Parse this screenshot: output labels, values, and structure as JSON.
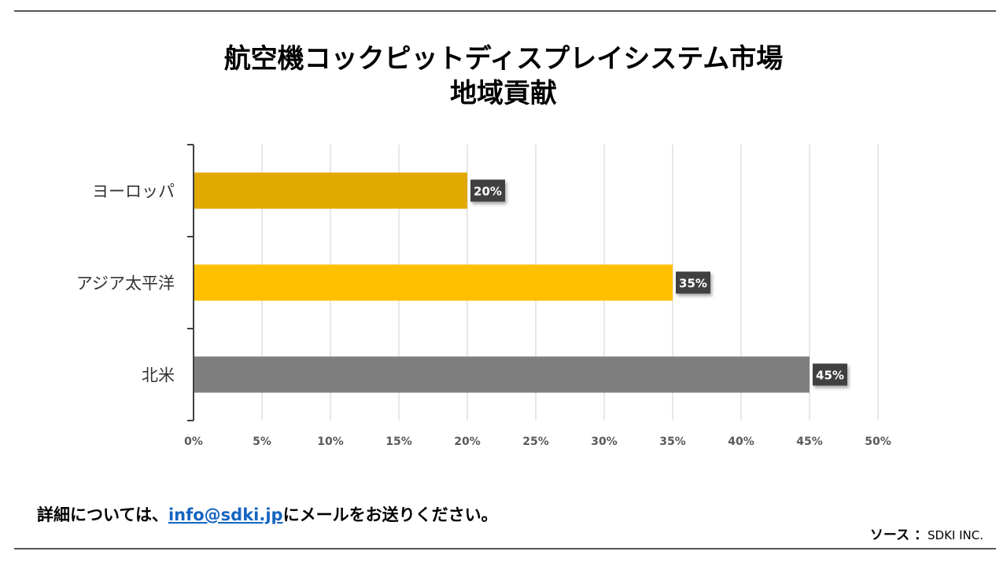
{
  "title_line1": "航空機コックピットディスプレイシステム市場",
  "title_line2": "地域貢献",
  "chart_data": {
    "type": "bar",
    "orientation": "horizontal",
    "categories": [
      "ヨーロッパ",
      "アジア太平洋",
      "北米"
    ],
    "values": [
      20,
      35,
      45
    ],
    "data_labels": [
      "20%",
      "35%",
      "45%"
    ],
    "colors": [
      "#e0a800",
      "#ffc000",
      "#7f7f7f"
    ],
    "xlim": [
      0,
      50
    ],
    "xticks": [
      0,
      5,
      10,
      15,
      20,
      25,
      30,
      35,
      40,
      45,
      50
    ],
    "xtick_labels": [
      "0%",
      "5%",
      "10%",
      "15%",
      "20%",
      "25%",
      "30%",
      "35%",
      "40%",
      "45%",
      "50%"
    ],
    "grid": true,
    "xlabel": "",
    "ylabel": ""
  },
  "footer": {
    "prefix": "詳細については、",
    "email": "info@sdki.jp",
    "suffix": "にメールをお送りください。"
  },
  "source": {
    "label": "ソース ：",
    "value": "SDKI INC."
  }
}
